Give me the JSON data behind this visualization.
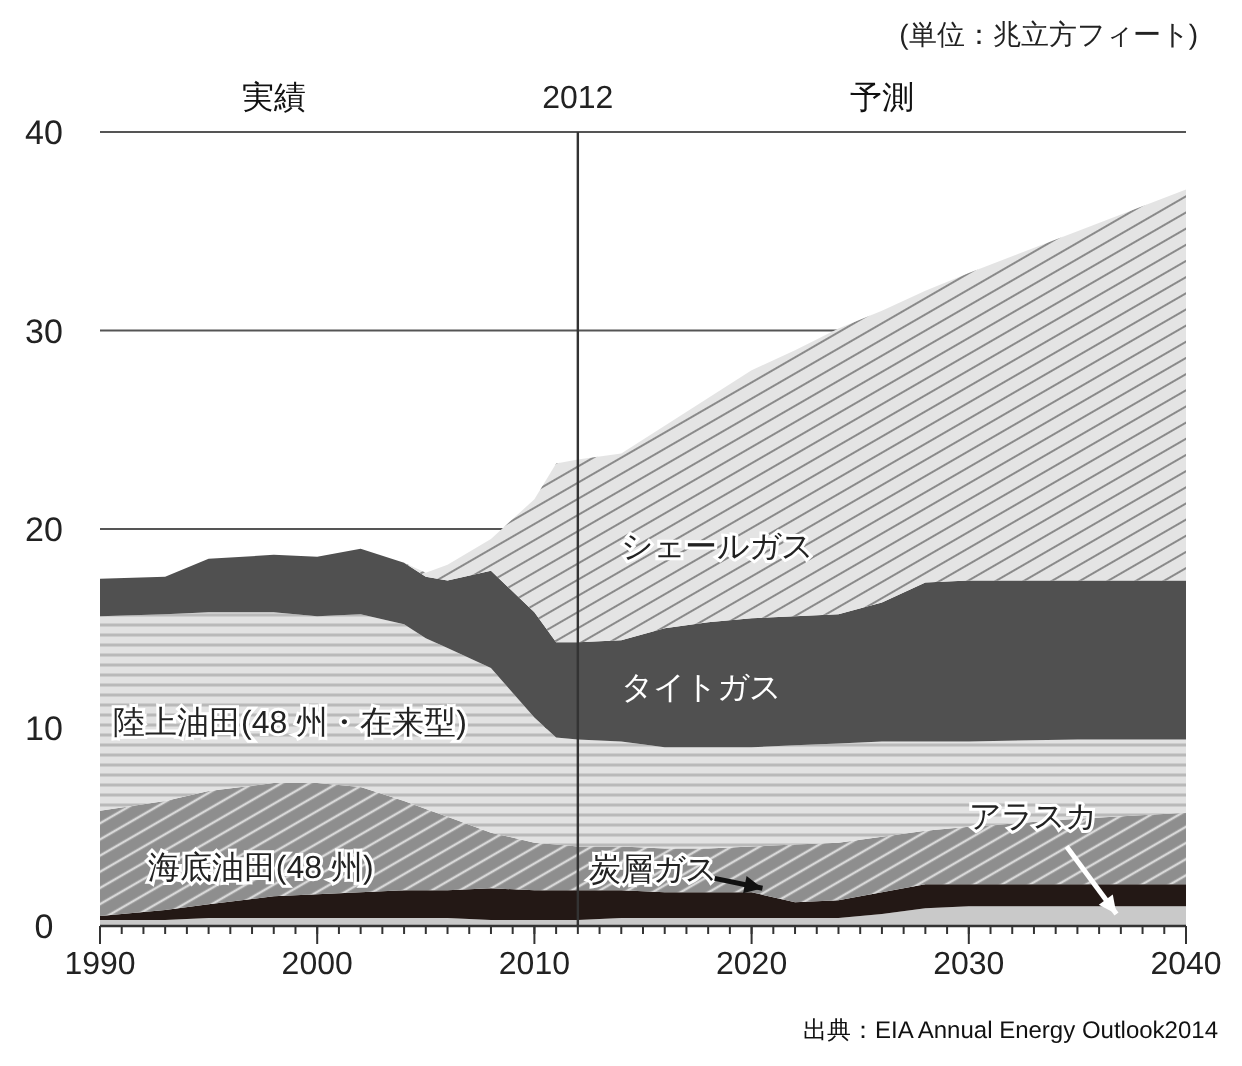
{
  "chart_data": {
    "type": "area",
    "stacked": true,
    "ylabel": "(単位：兆立方フィート)",
    "x": [
      1990,
      1993,
      1995,
      1998,
      2000,
      2002,
      2004,
      2005,
      2006,
      2008,
      2010,
      2011,
      2012,
      2014,
      2016,
      2018,
      2020,
      2022,
      2024,
      2026,
      2028,
      2030,
      2035,
      2040
    ],
    "series": [
      {
        "name": "アラスカ",
        "color": "#c9c9c9",
        "values": [
          0.3,
          0.3,
          0.4,
          0.4,
          0.4,
          0.4,
          0.4,
          0.4,
          0.4,
          0.3,
          0.3,
          0.3,
          0.3,
          0.4,
          0.4,
          0.4,
          0.4,
          0.4,
          0.4,
          0.6,
          0.9,
          1.0,
          1.0,
          1.0
        ]
      },
      {
        "name": "炭層ガス",
        "color": "#231815",
        "values": [
          0.2,
          0.5,
          0.7,
          1.1,
          1.2,
          1.3,
          1.4,
          1.4,
          1.4,
          1.6,
          1.5,
          1.5,
          1.5,
          1.4,
          1.3,
          1.3,
          1.3,
          0.8,
          0.9,
          1.1,
          1.2,
          1.1,
          1.1,
          1.1
        ]
      },
      {
        "name": "海底油田(48 州)",
        "color": "#8e8e8e",
        "values": [
          5.3,
          5.5,
          5.7,
          5.7,
          5.6,
          5.3,
          4.5,
          4.1,
          3.7,
          2.8,
          2.4,
          2.3,
          2.2,
          2.2,
          2.2,
          2.2,
          2.3,
          2.9,
          2.9,
          2.8,
          2.7,
          2.9,
          3.3,
          3.6
        ]
      },
      {
        "name": "陸上油田(48 州・在来型)",
        "color": "#e2e2e2",
        "values": [
          9.8,
          9.4,
          9.0,
          8.6,
          8.4,
          8.7,
          8.9,
          8.6,
          8.5,
          8.3,
          6.3,
          5.4,
          5.4,
          5.3,
          5.1,
          5.1,
          5.0,
          5.0,
          5.0,
          4.8,
          4.5,
          4.3,
          4.0,
          3.7
        ]
      },
      {
        "name": "タイトガス",
        "color": "#505050",
        "values": [
          1.9,
          1.9,
          2.7,
          2.9,
          3.0,
          3.3,
          3.1,
          3.1,
          3.4,
          4.9,
          5.3,
          4.8,
          4.9,
          5.1,
          6.0,
          6.3,
          6.5,
          6.5,
          6.5,
          7.0,
          8.0,
          8.1,
          8.0,
          8.0
        ]
      },
      {
        "name": "シェールガス",
        "color": "#e4e4e4",
        "values": [
          0,
          0,
          0,
          0,
          0,
          0,
          0,
          0.2,
          0.8,
          1.6,
          5.7,
          9.0,
          9.2,
          9.4,
          10.2,
          11.3,
          12.5,
          13.4,
          14.4,
          14.7,
          14.7,
          15.5,
          17.6,
          19.7
        ]
      }
    ],
    "xlim": [
      1990,
      2040
    ],
    "ylim": [
      0,
      40
    ],
    "xticks": [
      1990,
      2000,
      2010,
      2020,
      2030,
      2040
    ],
    "yticks": [
      0,
      10,
      20,
      30,
      40
    ],
    "grid": "y",
    "ref_lines": [
      {
        "axis": "x",
        "value": 2012,
        "label": "2012",
        "color": "#333333"
      }
    ],
    "annotations": [
      "実績",
      "予測",
      "出典：EIA Annual Energy Outlook2014"
    ]
  }
}
